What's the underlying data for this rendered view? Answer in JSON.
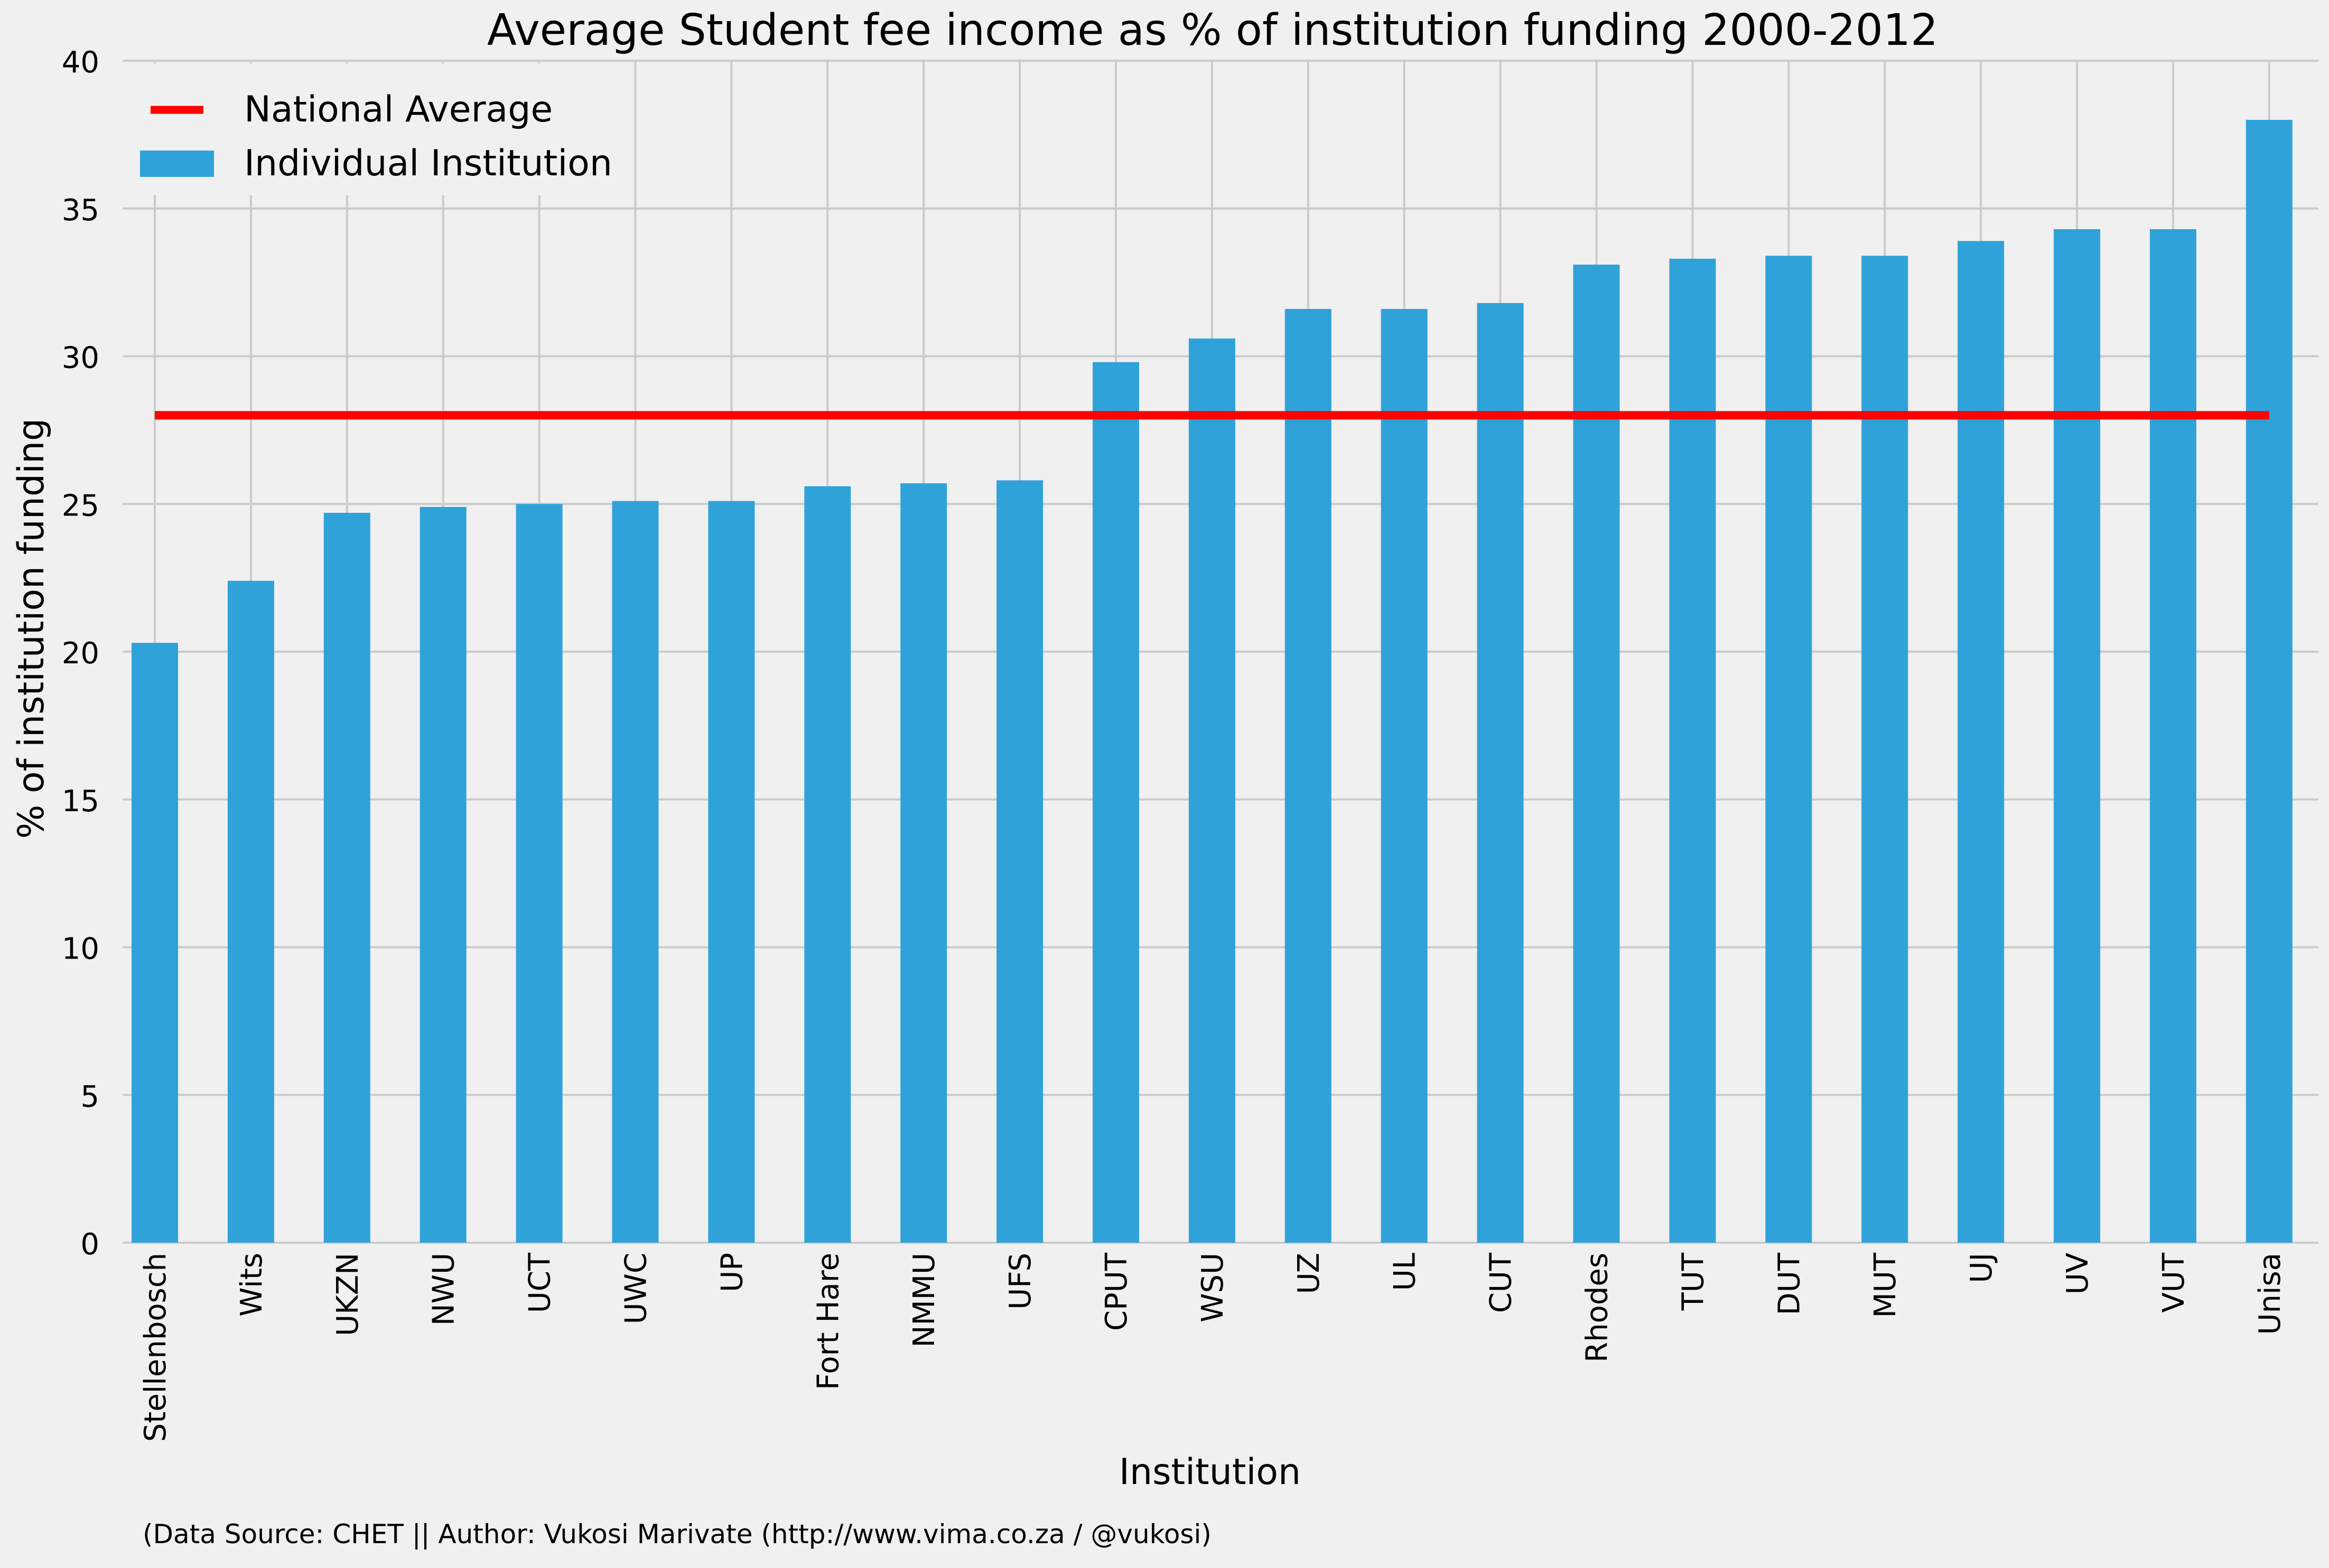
{
  "chart_data": {
    "type": "bar",
    "title": "Average Student fee income as % of institution funding 2000-2012",
    "xlabel": "Institution",
    "ylabel": "% of institution funding",
    "footnote": "(Data Source: CHET || Author: Vukosi Marivate (http://www.vima.co.za / @vukosi)",
    "ylim": [
      0,
      40
    ],
    "yticks": [
      0,
      5,
      10,
      15,
      20,
      25,
      30,
      35,
      40
    ],
    "grid": true,
    "legend_position": "top-left",
    "categories": [
      "Stellenbosch",
      "Wits",
      "UKZN",
      "NWU",
      "UCT",
      "UWC",
      "UP",
      "Fort Hare",
      "NMMU",
      "UFS",
      "CPUT",
      "WSU",
      "UZ",
      "UL",
      "CUT",
      "Rhodes",
      "TUT",
      "DUT",
      "MUT",
      "UJ",
      "UV",
      "VUT",
      "Unisa"
    ],
    "series": [
      {
        "name": "Individual Institution",
        "kind": "bar",
        "color": "#30a2da",
        "values": [
          20.3,
          22.4,
          24.7,
          24.9,
          25.0,
          25.1,
          25.1,
          25.6,
          25.7,
          25.8,
          29.8,
          30.6,
          31.6,
          31.6,
          31.8,
          33.1,
          33.3,
          33.4,
          33.4,
          33.9,
          34.3,
          34.3,
          38.0
        ]
      },
      {
        "name": "National Average",
        "kind": "line",
        "color": "#ff0000",
        "value": 28.0
      }
    ]
  },
  "colors": {
    "background": "#f0f0f0",
    "grid": "#cbcbcb",
    "bar": "#30a2da",
    "average_line": "#ff0000"
  }
}
